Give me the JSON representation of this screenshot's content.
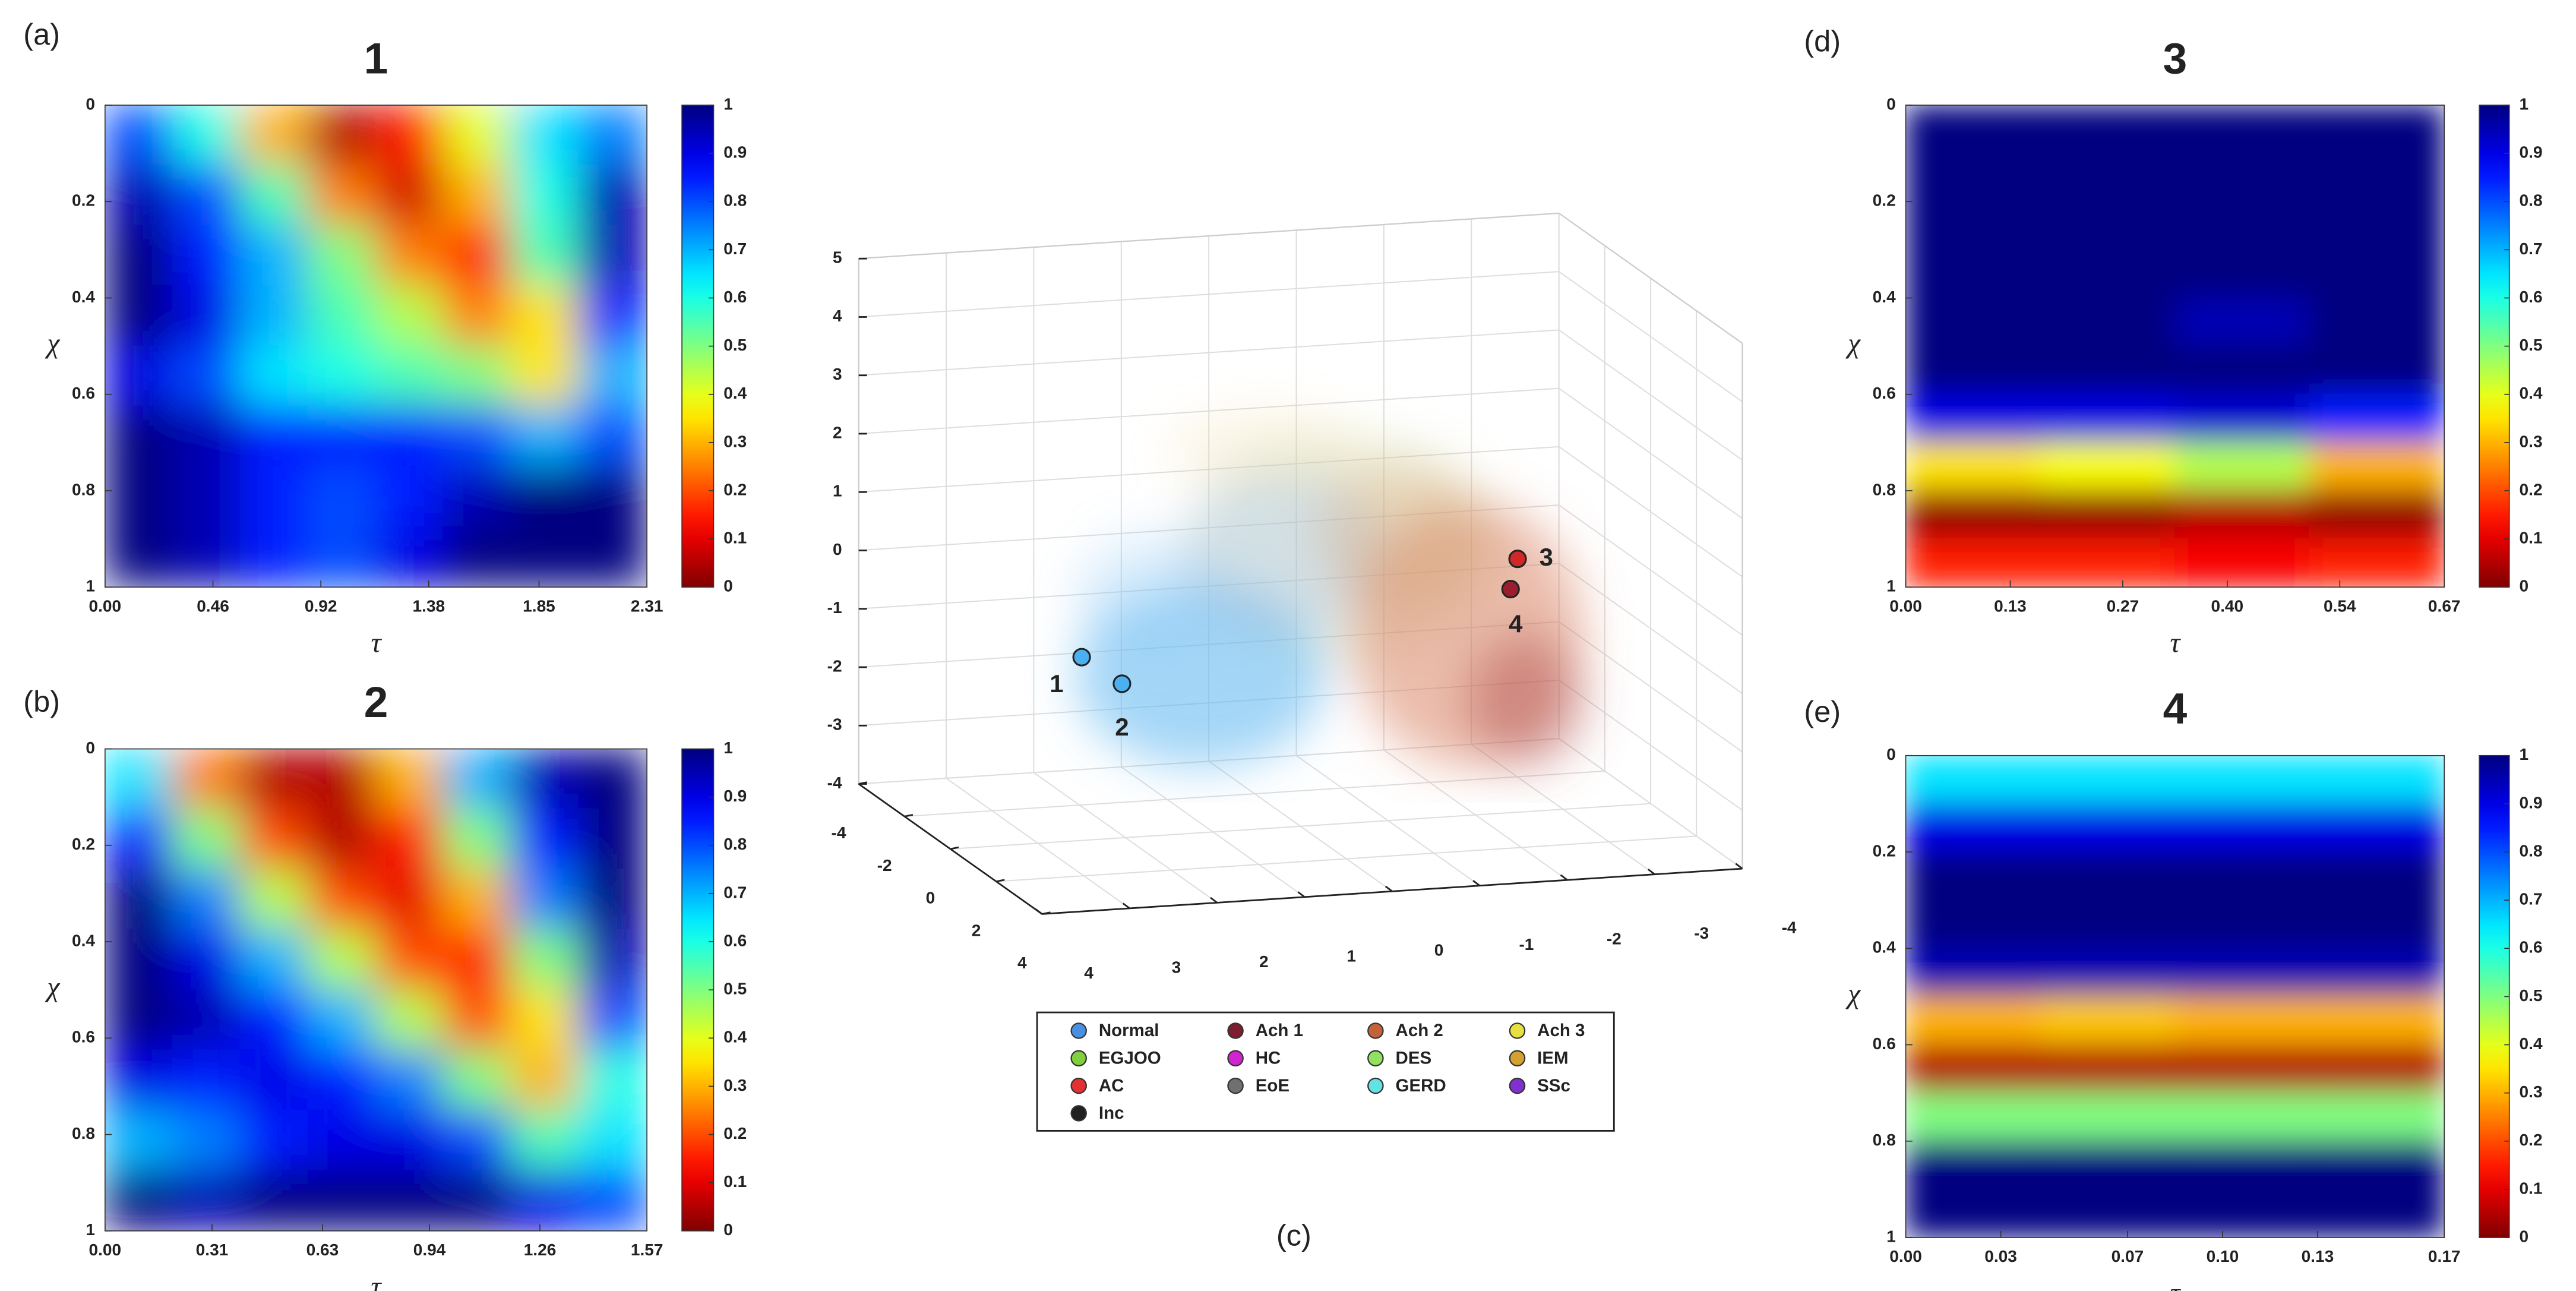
{
  "chart_data": [
    {
      "type": "heatmap",
      "panel_label": "(a)",
      "title": "1",
      "xlabel": "τ",
      "ylabel": "χ",
      "xlim": [
        0,
        2.31
      ],
      "ylim": [
        0,
        1
      ],
      "y_reversed": true,
      "xticks": [
        {
          "value": 0,
          "label": "0.00"
        },
        0.46,
        0.92,
        1.38,
        1.85,
        2.31
      ],
      "yticks": [
        0,
        0.2,
        0.4,
        0.6,
        0.8,
        1
      ],
      "colormap": "jet-reversed",
      "clim": [
        0,
        1
      ],
      "cticks": [
        0,
        0.1,
        0.2,
        0.3,
        0.4,
        0.5,
        0.6,
        0.7,
        0.8,
        0.9,
        1
      ],
      "z": [
        [
          0.8,
          0.6,
          0.3,
          0.05,
          0.15,
          0.4,
          0.65,
          0.75
        ],
        [
          0.95,
          0.8,
          0.55,
          0.25,
          0.08,
          0.3,
          0.6,
          0.95
        ],
        [
          1,
          0.85,
          0.7,
          0.5,
          0.25,
          0.15,
          0.55,
          0.95
        ],
        [
          1,
          0.9,
          0.7,
          0.55,
          0.45,
          0.25,
          0.35,
          0.85
        ],
        [
          0.9,
          0.8,
          0.65,
          0.6,
          0.55,
          0.5,
          0.35,
          0.7
        ],
        [
          1,
          0.95,
          0.85,
          0.85,
          0.85,
          0.8,
          0.7,
          0.8
        ],
        [
          1,
          0.95,
          0.85,
          0.8,
          0.85,
          0.95,
          1,
          1
        ],
        [
          1,
          0.95,
          0.85,
          0.8,
          0.9,
          1,
          1,
          1
        ]
      ]
    },
    {
      "type": "heatmap",
      "panel_label": "(b)",
      "title": "2",
      "xlabel": "τ",
      "ylabel": "χ",
      "xlim": [
        0,
        1.57
      ],
      "ylim": [
        0,
        1
      ],
      "y_reversed": true,
      "xticks": [
        {
          "value": 0,
          "label": "0.00"
        },
        0.31,
        0.63,
        0.94,
        1.26,
        1.57
      ],
      "yticks": [
        0,
        0.2,
        0.4,
        0.6,
        0.8,
        1
      ],
      "colormap": "jet-reversed",
      "clim": [
        0,
        1
      ],
      "cticks": [
        0,
        0.1,
        0.2,
        0.3,
        0.4,
        0.5,
        0.6,
        0.7,
        0.8,
        0.9,
        1
      ],
      "z": [
        [
          0.65,
          0.25,
          0.05,
          0.05,
          0.3,
          0.7,
          0.95,
          1
        ],
        [
          0.85,
          0.5,
          0.2,
          0.05,
          0.15,
          0.5,
          0.85,
          1
        ],
        [
          1,
          0.75,
          0.45,
          0.2,
          0.1,
          0.3,
          0.75,
          1
        ],
        [
          1,
          0.9,
          0.7,
          0.45,
          0.2,
          0.15,
          0.5,
          0.95
        ],
        [
          1,
          0.95,
          0.85,
          0.7,
          0.45,
          0.2,
          0.35,
          0.8
        ],
        [
          0.9,
          0.85,
          0.9,
          0.85,
          0.75,
          0.5,
          0.3,
          0.6
        ],
        [
          0.7,
          0.75,
          0.85,
          0.9,
          0.9,
          0.8,
          0.55,
          0.65
        ],
        [
          1,
          0.95,
          1,
          1,
          1,
          1,
          0.9,
          0.8
        ]
      ]
    },
    {
      "type": "scatter3d",
      "panel_label": "(c)",
      "xlim": [
        -4,
        4
      ],
      "ylim": [
        -4,
        4
      ],
      "zlim": [
        -4,
        5
      ],
      "xticks": [
        -4,
        -3,
        -2,
        -1,
        0,
        1,
        2,
        3,
        4
      ],
      "yticks": [
        -4,
        -2,
        0,
        2,
        4
      ],
      "zticks": [
        -4,
        -3,
        -2,
        -1,
        0,
        1,
        2,
        3,
        4,
        5
      ],
      "grid": true,
      "legend": "below",
      "series": [
        {
          "name": "Normal",
          "color": "#4a8fe0"
        },
        {
          "name": "Ach 1",
          "color": "#7a1e30"
        },
        {
          "name": "Ach 2",
          "color": "#c4623a"
        },
        {
          "name": "Ach 3",
          "color": "#e6e040"
        },
        {
          "name": "EGJOO",
          "color": "#7fcf3f"
        },
        {
          "name": "HC",
          "color": "#d024d0"
        },
        {
          "name": "DES",
          "color": "#92e262"
        },
        {
          "name": "IEM",
          "color": "#d4a032"
        },
        {
          "name": "AC",
          "color": "#e33030"
        },
        {
          "name": "EoE",
          "color": "#707070"
        },
        {
          "name": "GERD",
          "color": "#62e2e2"
        },
        {
          "name": "SSc",
          "color": "#8030d0"
        },
        {
          "name": "Inc",
          "color": "#202020"
        }
      ],
      "points": [
        {
          "label": "1",
          "x": 2.5,
          "y": 0,
          "z": -0.86,
          "color": "#4ab0f0"
        },
        {
          "label": "2",
          "x": 2.04,
          "y": 0,
          "z": -1.36,
          "color": "#4ab0f0"
        },
        {
          "label": "3",
          "x": -2.48,
          "y": 0,
          "z": 0.34,
          "color": "#d02828"
        },
        {
          "label": "4",
          "x": -2.4,
          "y": 0,
          "z": -0.17,
          "color": "#9a1e2e"
        }
      ]
    },
    {
      "type": "heatmap",
      "panel_label": "(d)",
      "title": "3",
      "xlabel": "τ",
      "ylabel": "χ",
      "xlim": [
        0,
        0.67
      ],
      "ylim": [
        0,
        1
      ],
      "y_reversed": true,
      "xticks": [
        {
          "value": 0,
          "label": "0.00"
        },
        0.13,
        0.27,
        {
          "value": 0.4,
          "label": "0.40"
        },
        0.54,
        0.67
      ],
      "yticks": [
        0,
        0.2,
        0.4,
        0.6,
        0.8,
        1
      ],
      "colormap": "jet-reversed",
      "clim": [
        0,
        1
      ],
      "cticks": [
        0,
        0.1,
        0.2,
        0.3,
        0.4,
        0.5,
        0.6,
        0.7,
        0.8,
        0.9,
        1
      ],
      "z": [
        [
          1,
          1,
          1,
          1
        ],
        [
          1,
          1,
          1,
          1
        ],
        [
          1,
          1,
          1,
          1
        ],
        [
          1,
          1,
          1,
          1
        ],
        [
          1,
          1,
          0.95,
          1
        ],
        [
          1,
          1,
          1,
          1
        ],
        [
          0.9,
          0.9,
          0.92,
          0.85
        ],
        [
          0.35,
          0.38,
          0.45,
          0.3
        ],
        [
          0.02,
          0.02,
          0.05,
          0.02
        ],
        [
          0.15,
          0.15,
          0.12,
          0.15
        ]
      ]
    },
    {
      "type": "heatmap",
      "panel_label": "(e)",
      "title": "4",
      "xlabel": "τ",
      "ylabel": "χ",
      "xlim": [
        0,
        0.17
      ],
      "ylim": [
        0,
        1
      ],
      "y_reversed": true,
      "xticks": [
        {
          "value": 0,
          "label": "0.00"
        },
        0.03,
        0.07,
        {
          "value": 0.1,
          "label": "0.10"
        },
        0.13,
        0.17
      ],
      "yticks": [
        0,
        0.2,
        0.4,
        0.6,
        0.8,
        1
      ],
      "colormap": "jet-reversed",
      "clim": [
        0,
        1
      ],
      "cticks": [
        0,
        0.1,
        0.2,
        0.3,
        0.4,
        0.5,
        0.6,
        0.7,
        0.8,
        0.9,
        1
      ],
      "z": [
        [
          0.65,
          0.65,
          0.65,
          0.65
        ],
        [
          0.9,
          0.9,
          0.9,
          0.9
        ],
        [
          1,
          1,
          1,
          1
        ],
        [
          1,
          1,
          1,
          1
        ],
        [
          0.95,
          0.95,
          0.95,
          0.95
        ],
        [
          0.3,
          0.32,
          0.3,
          0.3
        ],
        [
          0.05,
          0.05,
          0.05,
          0.05
        ],
        [
          0.5,
          0.5,
          0.5,
          0.5
        ],
        [
          1,
          1,
          1,
          1
        ],
        [
          1,
          1,
          1,
          1
        ]
      ]
    }
  ]
}
